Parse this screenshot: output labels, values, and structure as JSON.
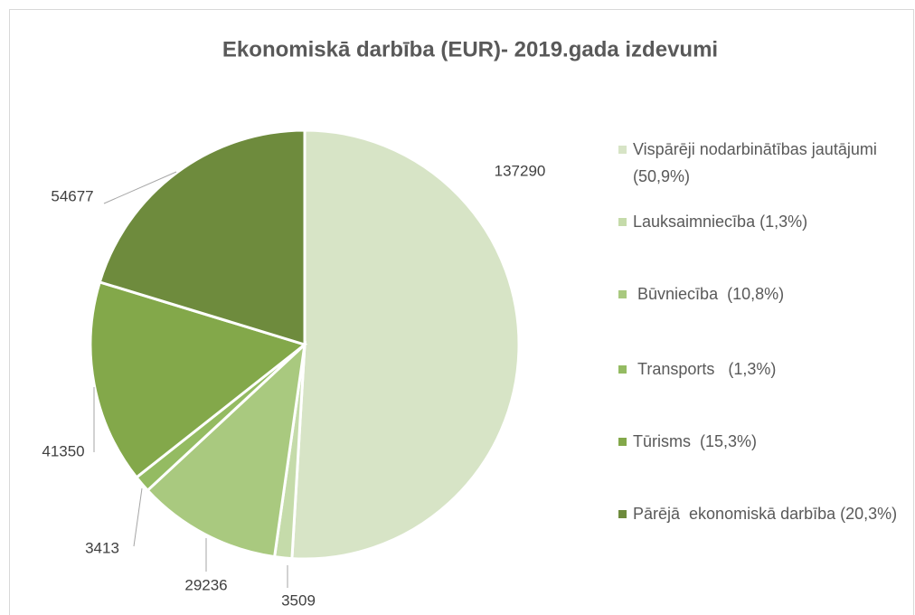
{
  "chart_data": {
    "type": "pie",
    "title": "Ekonomiskā darbība (EUR)- 2019.gada izdevumi",
    "categories": [
      "Vispārēji nodarbinātības jautājumi (50,9%)",
      "Lauksaimniecība (1,3%)",
      " Būvniecība  (10,8%)",
      " Transports   (1,3%)",
      "Tūrisms  (15,3%)",
      "Pārējā  ekonomiskā darbība (20,3%)"
    ],
    "values": [
      137290,
      3509,
      29236,
      3413,
      41350,
      54677
    ],
    "colors": [
      "#d7e4c6",
      "#c5dbaa",
      "#a9c97f",
      "#94bb62",
      "#83a84a",
      "#6e8b3d"
    ],
    "legend": "right"
  }
}
